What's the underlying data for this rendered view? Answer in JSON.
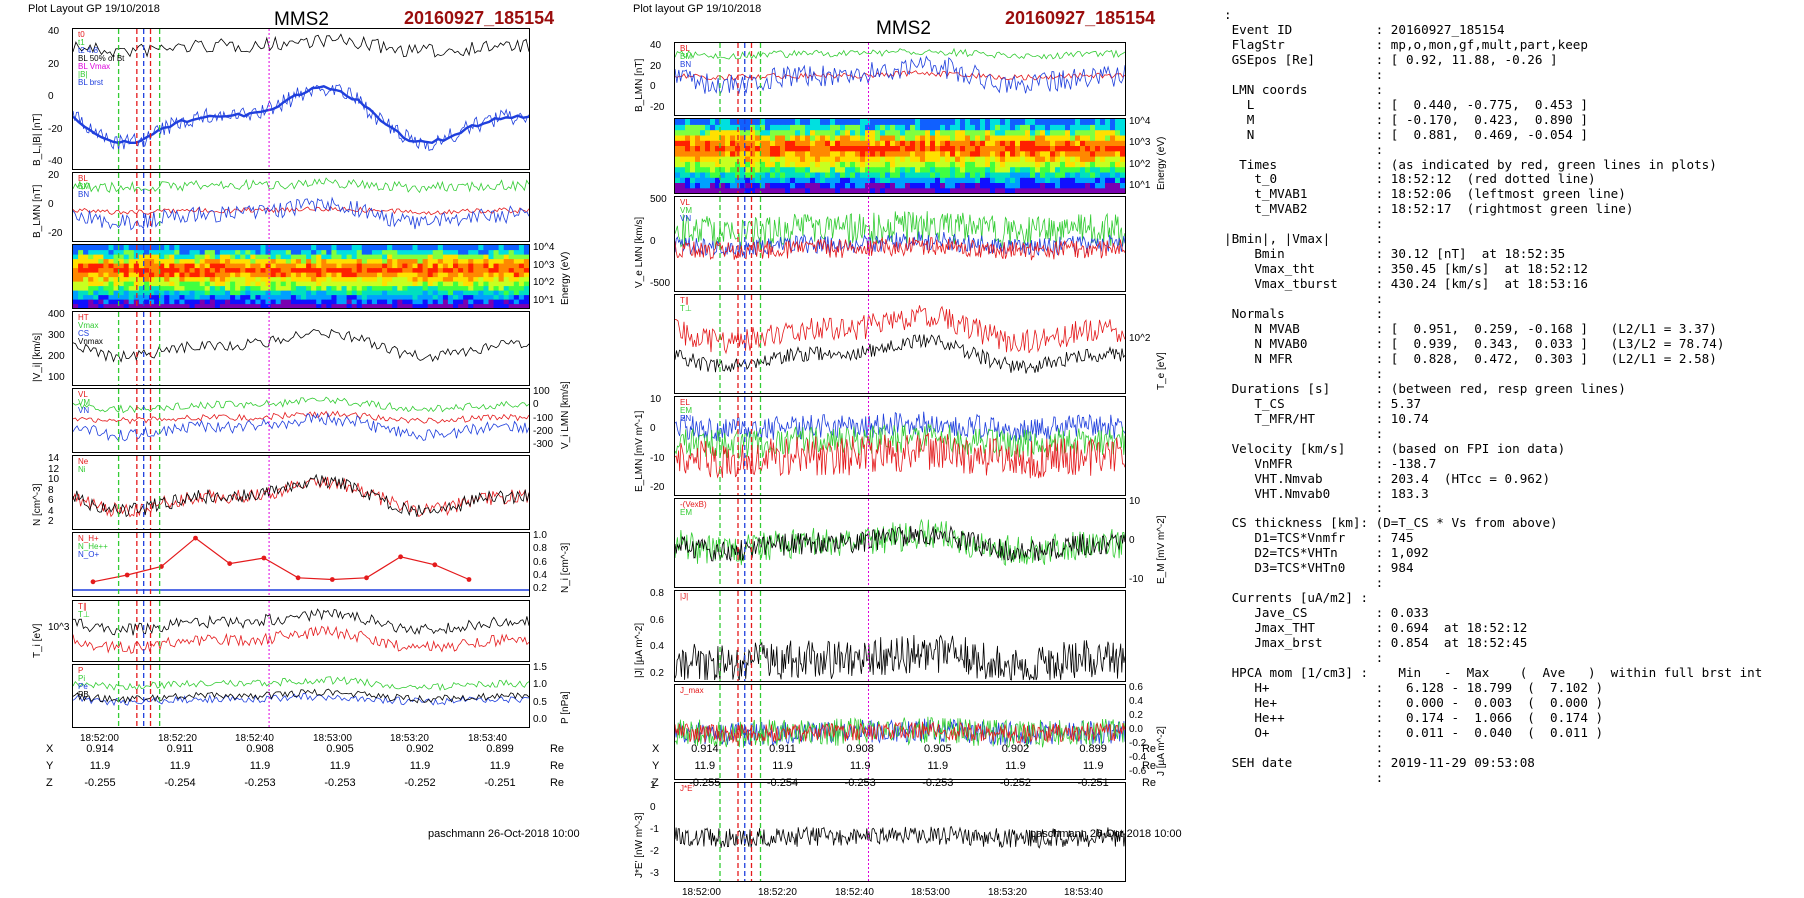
{
  "left": {
    "header": "Plot Layout GP 19/10/2018",
    "title": "MMS2",
    "event": "20160927_185154",
    "footer": "paschmann 26-Oct-2018 10:00",
    "panels": [
      {
        "ylabel": "B_L,|B| [nT]",
        "yticks": [
          "40",
          "20",
          "0",
          "-20",
          "-40"
        ],
        "legend": [
          "t0",
          "t1",
          "t2 4.8",
          "BL 50% of Bt",
          "BL Vmax",
          "|B|",
          "BL brst"
        ]
      },
      {
        "ylabel": "B_LMN [nT]",
        "yticks": [
          "20",
          "0",
          "-20"
        ],
        "legend": [
          "BL",
          "BM",
          "BN"
        ]
      },
      {
        "ylabel": "Energy (eV)",
        "yticks": [
          "10^4",
          "10^3",
          "10^2",
          "10^1"
        ]
      },
      {
        "ylabel": "|V_i| [km/s]",
        "yticks": [
          "400",
          "300",
          "200",
          "100"
        ],
        "legend": [
          "HT",
          "Vmax",
          "CS",
          "Vnmax"
        ]
      },
      {
        "ylabel": "V_i LMN [km/s]",
        "yticks": [
          "100",
          "0",
          "-100",
          "-200",
          "-300"
        ],
        "legend": [
          "VL",
          "VM",
          "VN"
        ]
      },
      {
        "ylabel": "N [cm^-3]",
        "yticks": [
          "14",
          "12",
          "10",
          "8",
          "6",
          "4",
          "2"
        ],
        "legend": [
          "Ne",
          "Ni"
        ]
      },
      {
        "ylabel": "N_i [cm^-3]",
        "yticks": [
          "1.0",
          "0.8",
          "0.6",
          "0.4",
          "0.2"
        ],
        "legend": [
          "N_H+",
          "N_He++",
          "N_O+"
        ]
      },
      {
        "ylabel": "T_i [eV]",
        "yticks": [
          "10^3"
        ],
        "legend": [
          "T∥",
          "T⊥"
        ]
      },
      {
        "ylabel": "P [nPa]",
        "yticks": [
          "1.5",
          "1.0",
          "0.5",
          "0.0"
        ],
        "legend": [
          "P",
          "Pi",
          "Pe",
          "PB"
        ]
      }
    ],
    "xticks": [
      "18:52:00",
      "18:52:20",
      "18:52:40",
      "18:53:00",
      "18:53:20",
      "18:53:40"
    ],
    "ephem": {
      "X": [
        "0.914",
        "0.911",
        "0.908",
        "0.905",
        "0.902",
        "0.899"
      ],
      "Y": [
        "11.9",
        "11.9",
        "11.9",
        "11.9",
        "11.9",
        "11.9"
      ],
      "Z": [
        "-0.255",
        "-0.254",
        "-0.253",
        "-0.253",
        "-0.252",
        "-0.251"
      ],
      "unit": "Re"
    }
  },
  "middle": {
    "header": "Plot layout GP 19/10/2018",
    "title": "MMS2",
    "event": "20160927_185154",
    "footer": "paschmann 26-Oct-2018 10:00",
    "panels": [
      {
        "ylabel": "B_LMN [nT]",
        "yticks": [
          "40",
          "20",
          "0",
          "-20"
        ],
        "legend": [
          "BL",
          "BM",
          "BN"
        ]
      },
      {
        "ylabel": "Energy (eV)",
        "yticks": [
          "10^4",
          "10^3",
          "10^2",
          "10^1"
        ]
      },
      {
        "ylabel": "V_e LMN [km/s]",
        "yticks": [
          "500",
          "0",
          "-500"
        ],
        "legend": [
          "VL",
          "VM",
          "VN"
        ]
      },
      {
        "ylabel": "T_e [eV]",
        "yticks": [
          "10^2"
        ],
        "legend": [
          "T∥",
          "T⊥"
        ]
      },
      {
        "ylabel": "E_LMN [mV m^-1]",
        "yticks": [
          "10",
          "0",
          "-10",
          "-20"
        ],
        "legend": [
          "EL",
          "EM",
          "EN"
        ]
      },
      {
        "ylabel": "E_M [mV m^-2]",
        "yticks": [
          "10",
          "0",
          "-10"
        ],
        "legend": [
          "-(VexB)",
          "EM"
        ]
      },
      {
        "ylabel": "|J| [µA m^-2]",
        "yticks": [
          "0.8",
          "0.6",
          "0.4",
          "0.2"
        ],
        "legend": [
          "|J|"
        ]
      },
      {
        "ylabel": "J [µA m^-2]",
        "yticks": [
          "0.6",
          "0.4",
          "0.2",
          "0.0",
          "-0.2",
          "-0.4",
          "-0.6"
        ],
        "legend": [
          "J_max"
        ]
      },
      {
        "ylabel": "J*E' [nW m^-3]",
        "yticks": [
          "1",
          "0",
          "-1",
          "-2",
          "-3"
        ],
        "legend": [
          "J*E'"
        ]
      }
    ],
    "xticks": [
      "18:52:00",
      "18:52:20",
      "18:52:40",
      "18:53:00",
      "18:53:20",
      "18:53:40"
    ],
    "ephem": {
      "X": [
        "0.914",
        "0.911",
        "0.908",
        "0.905",
        "0.902",
        "0.899"
      ],
      "Y": [
        "11.9",
        "11.9",
        "11.9",
        "11.9",
        "11.9",
        "11.9"
      ],
      "Z": [
        "-0.255",
        "-0.254",
        "-0.253",
        "-0.253",
        "-0.252",
        "-0.251"
      ],
      "unit": "Re"
    }
  },
  "info_text": ":\n Event ID           : 20160927_185154\n FlagStr            : mp,o,mon,gf,mult,part,keep\n GSEpos [Re]        : [ 0.92, 11.88, -0.26 ]\n                    :\n LMN coords         :\n   L                : [  0.440, -0.775,  0.453 ]\n   M                : [ -0.170,  0.423,  0.890 ]\n   N                : [  0.881,  0.469, -0.054 ]\n                    :\n  Times             : (as indicated by red, green lines in plots)\n    t_0             : 18:52:12  (red dotted line)\n    t_MVAB1         : 18:52:06  (leftmost green line)\n    t_MVAB2         : 18:52:17  (rightmost green line)\n                    :\n|Bmin|, |Vmax|      :\n    Bmin            : 30.12 [nT]  at 18:52:35\n    Vmax_tht        : 350.45 [km/s]  at 18:52:12\n    Vmax_tburst     : 430.24 [km/s]  at 18:53:16\n                    :\n Normals            :\n    N MVAB          : [  0.951,  0.259, -0.168 ]   (L2/L1 = 3.37)\n    N MVAB0         : [  0.939,  0.343,  0.033 ]   (L3/L2 = 78.74)\n    N MFR           : [  0.828,  0.472,  0.303 ]   (L2/L1 = 2.58)\n                    :\n Durations [s]      : (between red, resp green lines)\n    T_CS            : 5.37\n    T_MFR/HT        : 10.74\n                    :\n Velocity [km/s]    : (based on FPI ion data)\n    VnMFR           : -138.7\n    VHT.Nmvab       : 203.4  (HTcc = 0.962)\n    VHT.Nmvab0      : 183.3\n                    :\n CS thickness [km]: (D=T_CS * Vs from above)\n    D1=TCS*Vnmfr    : 745\n    D2=TCS*VHTn     : 1,092\n    D3=TCS*VHTn0    : 984\n                    :\n Currents [uA/m2] :\n    Jave_CS         : 0.033\n    Jmax_THT        : 0.694  at 18:52:12\n    Jmax_brst       : 0.854  at 18:52:45\n                    :\n HPCA mom [1/cm3] :    Min   -  Max    (  Ave   )  within full brst int\n    H+              :   6.128 - 18.799  (  7.102 )\n    He+             :   0.000 -  0.003  (  0.000 )\n    He++            :   0.174 -  1.066  (  0.174 )\n    O+              :   0.011 -  0.040  (  0.011 )\n                    :\n SEH date           : 2019-11-29 09:53:08\n                    :",
  "colors": {
    "red": "#e41a1c",
    "green": "#33cc33",
    "blue": "#1f3fdd",
    "black": "#000000",
    "magenta": "#dd00dd",
    "event": "#9a0d0d"
  },
  "chart_data": [
    {
      "type": "line",
      "title": "MMS2 20160927_185154 (left)",
      "x_range": [
        "18:51:57",
        "18:53:55"
      ],
      "panels": 9
    },
    {
      "type": "line",
      "title": "MMS2 20160927_185154 (middle)",
      "x_range": [
        "18:51:57",
        "18:53:55"
      ],
      "panels": 9
    }
  ]
}
